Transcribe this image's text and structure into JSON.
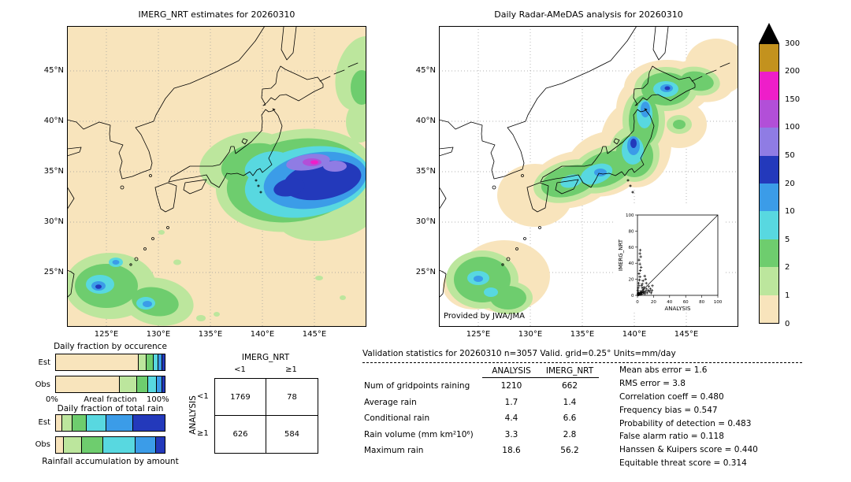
{
  "titles": {
    "left_map": "IMERG_NRT estimates for 20260310",
    "right_map": "Daily Radar-AMeDAS analysis for 20260310"
  },
  "map_axes": {
    "lat_labels": [
      "45°N",
      "40°N",
      "35°N",
      "30°N",
      "25°N"
    ],
    "lon_labels": [
      "125°E",
      "130°E",
      "135°E",
      "140°E",
      "145°E"
    ]
  },
  "right_map_credit": "Provided by JWA/JMA",
  "colorbar": {
    "boundary_labels_top_to_bottom": [
      "300",
      "200",
      "150",
      "100",
      "50",
      "20",
      "10",
      "5",
      "2",
      "1",
      "0"
    ],
    "segment_colors_top_to_bottom": [
      "#c3921e",
      "#ee1ec9",
      "#b24fd8",
      "#8f7ce4",
      "#2339bb",
      "#3b9ce8",
      "#58d8e0",
      "#6ecd6e",
      "#bce69d",
      "#f8e4bc"
    ],
    "overflow_color": "#000000"
  },
  "occurrence_section": {
    "title": "Daily fraction by occurence",
    "row_labels": [
      "Est",
      "Obs"
    ],
    "x_min_label": "0%",
    "x_axis_label": "Areal fraction",
    "x_max_label": "100%"
  },
  "volume_section": {
    "title": "Daily fraction of total rain",
    "row_labels": [
      "Est",
      "Obs"
    ],
    "caption": "Rainfall accumulation by amount"
  },
  "contingency_section": {
    "col_group_label": "IMERG_NRT",
    "row_group_label": "ANALYSIS",
    "col_labels": [
      "<1",
      "≥1"
    ],
    "row_labels": [
      "<1",
      "≥1"
    ]
  },
  "stats_section": {
    "title": "Validation statistics for 20260310  n=3057 Valid. grid=0.25° Units=mm/day",
    "col_headers": [
      "ANALYSIS",
      "IMERG_NRT"
    ]
  },
  "chart_data": {
    "maps": [
      {
        "type": "heatmap",
        "title": "IMERG_NRT estimates for 20260310",
        "lat_ticks": [
          "45°N",
          "40°N",
          "35°N",
          "30°N",
          "25°N"
        ],
        "lon_ticks": [
          "125°E",
          "130°E",
          "135°E",
          "140°E",
          "145°E"
        ],
        "color_levels_mm_day": [
          0,
          1,
          2,
          5,
          10,
          20,
          50,
          100,
          150,
          200,
          300
        ]
      },
      {
        "type": "heatmap",
        "title": "Daily Radar-AMeDAS analysis for 20260310",
        "lat_ticks": [
          "45°N",
          "40°N",
          "35°N",
          "30°N",
          "25°N"
        ],
        "lon_ticks": [
          "125°E",
          "130°E",
          "135°E",
          "140°E",
          "145°E"
        ],
        "color_levels_mm_day": [
          0,
          1,
          2,
          5,
          10,
          20,
          50,
          100,
          150,
          200,
          300
        ]
      }
    ],
    "contingency_table": {
      "type": "table",
      "columns": [
        "IMERG_NRT <1",
        "IMERG_NRT ≥1"
      ],
      "rows": [
        "ANALYSIS <1",
        "ANALYSIS ≥1"
      ],
      "values": [
        [
          1769,
          78
        ],
        [
          626,
          584
        ]
      ]
    },
    "validation_table": {
      "type": "table",
      "columns": [
        "ANALYSIS",
        "IMERG_NRT"
      ],
      "rows": [
        {
          "label": "Num of gridpoints raining",
          "values": [
            "1210",
            "662"
          ]
        },
        {
          "label": "Average rain",
          "values": [
            "1.7",
            "1.4"
          ]
        },
        {
          "label": "Conditional rain",
          "values": [
            "4.4",
            "6.6"
          ]
        },
        {
          "label": "Rain volume (mm km²10⁶)",
          "values": [
            "3.3",
            "2.8"
          ]
        },
        {
          "label": "Maximum rain",
          "values": [
            "18.6",
            "56.2"
          ]
        }
      ]
    },
    "metrics": [
      {
        "label": "Mean abs error",
        "value": "1.6"
      },
      {
        "label": "RMS error",
        "value": "3.8"
      },
      {
        "label": "Correlation coeff",
        "value": "0.480"
      },
      {
        "label": "Frequency bias",
        "value": "0.547"
      },
      {
        "label": "Probability of detection",
        "value": "0.483"
      },
      {
        "label": "False alarm ratio",
        "value": "0.118"
      },
      {
        "label": "Hanssen & Kuipers score",
        "value": "0.440"
      },
      {
        "label": "Equitable threat score",
        "value": "0.314"
      }
    ],
    "occurrence_bars": {
      "type": "bar",
      "stacked": true,
      "orientation": "horizontal",
      "categories": [
        "Est",
        "Obs"
      ],
      "xlabel": "Areal fraction",
      "xlim_pct": [
        0,
        100
      ],
      "series_colors": [
        "#f8e4bc",
        "#bce69d",
        "#6ecd6e",
        "#58d8e0",
        "#3b9ce8",
        "#2339bb"
      ],
      "est_fractions": [
        0.78,
        0.07,
        0.06,
        0.04,
        0.03,
        0.02
      ],
      "obs_fractions": [
        0.6,
        0.16,
        0.1,
        0.07,
        0.05,
        0.02
      ]
    },
    "volume_bars": {
      "type": "bar",
      "stacked": true,
      "orientation": "horizontal",
      "categories": [
        "Est",
        "Obs"
      ],
      "xlabel": "Rainfall accumulation by amount",
      "xlim_pct": [
        0,
        100
      ],
      "series_colors": [
        "#f8e4bc",
        "#bce69d",
        "#6ecd6e",
        "#58d8e0",
        "#3b9ce8",
        "#2339bb"
      ],
      "est_fractions": [
        0.05,
        0.09,
        0.13,
        0.18,
        0.25,
        0.3
      ],
      "obs_fractions": [
        0.07,
        0.16,
        0.2,
        0.3,
        0.19,
        0.08
      ]
    },
    "inset_scatter": {
      "type": "scatter",
      "xlabel": "ANALYSIS",
      "ylabel": "IMERG_NRT",
      "xlim": [
        0,
        100
      ],
      "ylim": [
        0,
        100
      ],
      "tick_values": [
        0,
        20,
        40,
        60,
        80,
        100
      ],
      "diagonal": true,
      "marker": "+",
      "points": [
        [
          0.5,
          0.5
        ],
        [
          1,
          1
        ],
        [
          1.5,
          0.8
        ],
        [
          2,
          1.5
        ],
        [
          0.8,
          2.5
        ],
        [
          1.2,
          3.5
        ],
        [
          2.5,
          2
        ],
        [
          3,
          1
        ],
        [
          3.5,
          3
        ],
        [
          4,
          2
        ],
        [
          4,
          5
        ],
        [
          5,
          3.5
        ],
        [
          5.5,
          1.5
        ],
        [
          6,
          5
        ],
        [
          7,
          3
        ],
        [
          7.5,
          7
        ],
        [
          8,
          4
        ],
        [
          9,
          2
        ],
        [
          10,
          5
        ],
        [
          11,
          8
        ],
        [
          12,
          3
        ],
        [
          13,
          6
        ],
        [
          14,
          11
        ],
        [
          15,
          5
        ],
        [
          16,
          8
        ],
        [
          17,
          3
        ],
        [
          18,
          6
        ],
        [
          18.6,
          12
        ],
        [
          0.5,
          6
        ],
        [
          1,
          9
        ],
        [
          2,
          12
        ],
        [
          1.5,
          15
        ],
        [
          2.5,
          19
        ],
        [
          3,
          23
        ],
        [
          2,
          27
        ],
        [
          3.5,
          31
        ],
        [
          4.5,
          35
        ],
        [
          3,
          39
        ],
        [
          2,
          44
        ],
        [
          4,
          48
        ],
        [
          3,
          52
        ],
        [
          3.5,
          56.2
        ],
        [
          6,
          14
        ],
        [
          7,
          18
        ],
        [
          9,
          24
        ],
        [
          11,
          15
        ],
        [
          8,
          10
        ],
        [
          6,
          9
        ],
        [
          5,
          12
        ],
        [
          10,
          20
        ]
      ]
    }
  }
}
